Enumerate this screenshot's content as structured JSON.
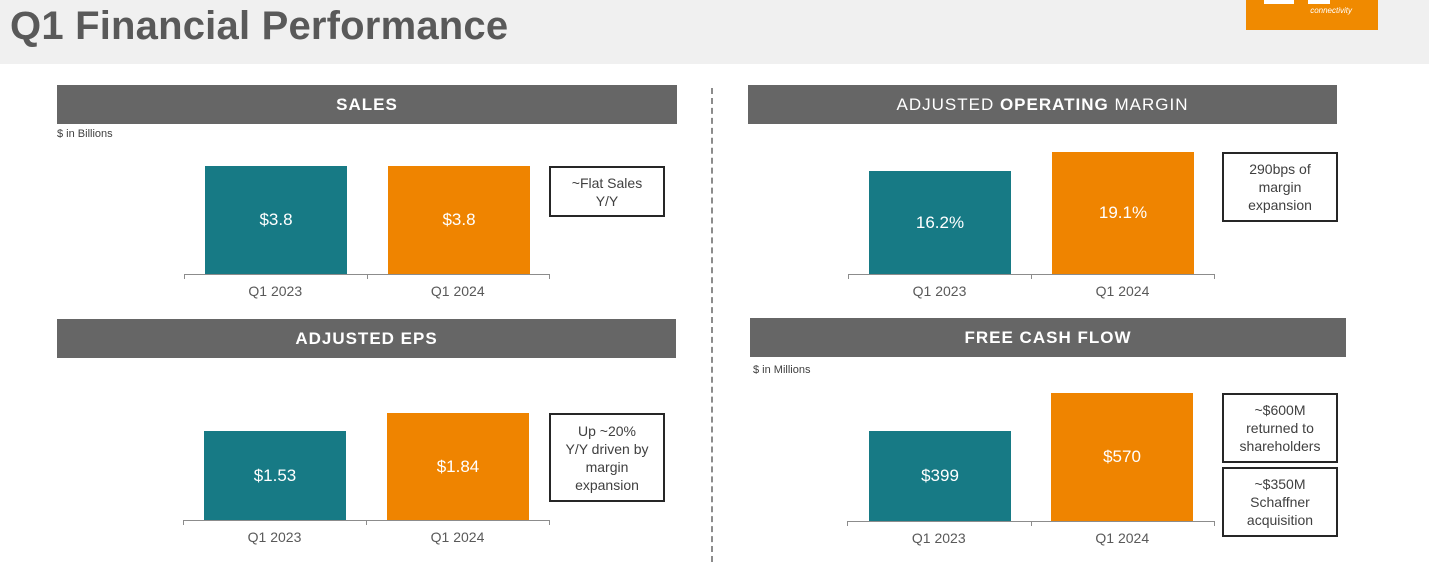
{
  "page": {
    "title": "Q1 Financial Performance"
  },
  "logo": {
    "text": "connectivity"
  },
  "colors": {
    "q1_2023": "#177a85",
    "q1_2024": "#ef8400",
    "header": "#666666"
  },
  "panels": {
    "sales": {
      "header": "SALES",
      "units": "$ in Billions",
      "callout": [
        "~Flat Sales",
        "Y/Y"
      ]
    },
    "margin": {
      "header_pre": "ADJUSTED ",
      "header_bold": "OPERATING",
      "header_post": " MARGIN",
      "callout": [
        "290bps of",
        "margin",
        "expansion"
      ]
    },
    "eps": {
      "header": "ADJUSTED EPS",
      "callout": [
        "Up ~20%",
        "Y/Y driven by",
        "margin",
        "expansion"
      ]
    },
    "fcf": {
      "header": "FREE CASH FLOW",
      "units": "$ in Millions",
      "callouts": [
        [
          "~$600M",
          "returned to",
          "shareholders"
        ],
        [
          "~$350M",
          "Schaffner",
          "acquisition"
        ]
      ]
    }
  },
  "chart_data": [
    {
      "id": "sales",
      "type": "bar",
      "categories": [
        "Q1 2023",
        "Q1 2024"
      ],
      "values": [
        3.8,
        3.8
      ],
      "labels": [
        "$3.8",
        "$3.8"
      ],
      "title": "SALES",
      "ylabel": "$ in Billions"
    },
    {
      "id": "margin",
      "type": "bar",
      "categories": [
        "Q1 2023",
        "Q1 2024"
      ],
      "values": [
        16.2,
        19.1
      ],
      "labels": [
        "16.2%",
        "19.1%"
      ],
      "title": "ADJUSTED OPERATING MARGIN"
    },
    {
      "id": "eps",
      "type": "bar",
      "categories": [
        "Q1 2023",
        "Q1 2024"
      ],
      "values": [
        1.53,
        1.84
      ],
      "labels": [
        "$1.53",
        "$1.84"
      ],
      "title": "ADJUSTED EPS"
    },
    {
      "id": "fcf",
      "type": "bar",
      "categories": [
        "Q1 2023",
        "Q1 2024"
      ],
      "values": [
        399,
        570
      ],
      "labels": [
        "$399",
        "$570"
      ],
      "title": "FREE CASH FLOW",
      "ylabel": "$ in Millions"
    }
  ]
}
